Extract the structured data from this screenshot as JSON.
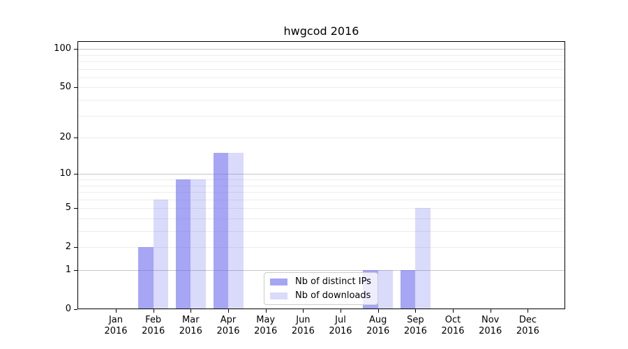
{
  "title": "hwgcod 2016",
  "colors": {
    "bar_base": "#6666ee",
    "bar_dark_css": "rgba(102,102,238,0.58)",
    "bar_light_css": "rgba(102,102,238,0.24)",
    "bar_dark_hex": "#a6a6f5",
    "bar_light_hex": "#dadafb",
    "grid_major": "#c5c5c5",
    "grid_minor": "#ececec",
    "spine": "#000000",
    "legend_border": "#cccccc",
    "text": "#000000",
    "background": "#ffffff"
  },
  "chart_data": {
    "type": "bar",
    "title": "hwgcod 2016",
    "categories": [
      "Jan 2016",
      "Feb 2016",
      "Mar 2016",
      "Apr 2016",
      "May 2016",
      "Jun 2016",
      "Jul 2016",
      "Aug 2016",
      "Sep 2016",
      "Oct 2016",
      "Nov 2016",
      "Dec 2016"
    ],
    "series": [
      {
        "name": "Nb of distinct IPs",
        "values": [
          0,
          2,
          9,
          15,
          0,
          0,
          0,
          1,
          1,
          0,
          0,
          0
        ],
        "color_css": "rgba(102,102,238,0.58)",
        "color_hex": "#a6a6f5"
      },
      {
        "name": "Nb of downloads",
        "values": [
          0,
          6,
          9,
          15,
          0,
          0,
          0,
          1,
          5,
          0,
          0,
          0
        ],
        "color_css": "rgba(102,102,238,0.24)",
        "color_hex": "#dadafb"
      }
    ],
    "xlabel": "",
    "ylabel": "",
    "y_ticks": [
      0,
      1,
      2,
      5,
      10,
      20,
      50,
      100
    ],
    "ylim": [
      0,
      115
    ],
    "y_scale": "log10(1+y)",
    "grid": "horizontal, minor lines at 2-9 and 20-90, major lines at 1/10/100",
    "legend_position": "inside lower-center",
    "bar_layout": "paired bars centered on each month tick"
  },
  "legend": {
    "items": [
      {
        "label": "Nb of distinct IPs",
        "swatch": "dark"
      },
      {
        "label": "Nb of downloads",
        "swatch": "light"
      }
    ]
  }
}
